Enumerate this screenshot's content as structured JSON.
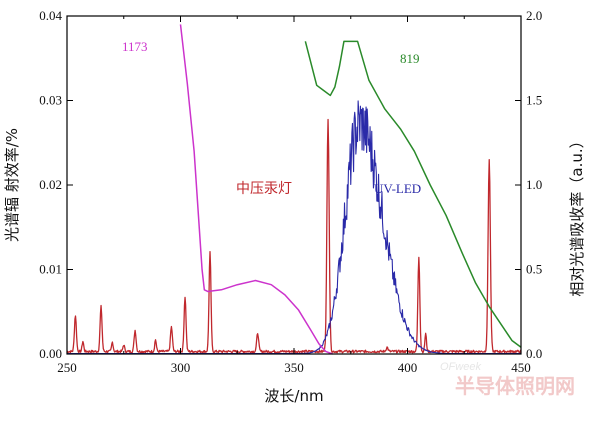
{
  "chart_data": {
    "type": "line",
    "xlabel": "波长/nm",
    "ylabel_left": "光谱辐 射效率/%",
    "ylabel_right": "相对光谱吸收率（a.u.）",
    "xlim": [
      250,
      450
    ],
    "ylim_left": [
      0,
      0.04
    ],
    "ylim_right": [
      0,
      2.0
    ],
    "x_ticks": [
      "250",
      "300",
      "350",
      "400",
      "450"
    ],
    "y_left_ticks": [
      "0.00",
      "0.01",
      "0.02",
      "0.03",
      "0.04"
    ],
    "y_right_ticks": [
      "0.0",
      "0.5",
      "1.0",
      "1.5",
      "2.0"
    ],
    "grid": false,
    "series": [
      {
        "name": "中压汞灯",
        "color": "#c0282d",
        "axis": "left",
        "baseline": 0.0003,
        "peaks": [
          {
            "x": 253.7,
            "y": 0.0043,
            "w": 0.6
          },
          {
            "x": 257,
            "y": 0.0012,
            "w": 0.5
          },
          {
            "x": 265,
            "y": 0.0053,
            "w": 0.6
          },
          {
            "x": 270,
            "y": 0.0011,
            "w": 0.5
          },
          {
            "x": 275,
            "y": 0.0008,
            "w": 0.5
          },
          {
            "x": 280,
            "y": 0.0025,
            "w": 0.6
          },
          {
            "x": 289,
            "y": 0.0014,
            "w": 0.5
          },
          {
            "x": 296,
            "y": 0.0029,
            "w": 0.6
          },
          {
            "x": 302,
            "y": 0.0065,
            "w": 0.6
          },
          {
            "x": 313,
            "y": 0.0117,
            "w": 0.6
          },
          {
            "x": 334,
            "y": 0.0022,
            "w": 0.6
          },
          {
            "x": 365,
            "y": 0.0274,
            "w": 0.7
          },
          {
            "x": 391,
            "y": 0.0005,
            "w": 0.6
          },
          {
            "x": 405,
            "y": 0.0112,
            "w": 0.6
          },
          {
            "x": 408,
            "y": 0.0021,
            "w": 0.5
          },
          {
            "x": 436,
            "y": 0.0227,
            "w": 0.7
          }
        ]
      },
      {
        "name": "UV-LED",
        "color": "#2a2aa8",
        "axis": "left",
        "center": 379,
        "peak": 0.0272,
        "sigma_left": 6.5,
        "sigma_right": 10.0,
        "range": [
          355,
          405
        ]
      },
      {
        "name": "1173",
        "color": "#cc33cc",
        "axis": "right",
        "points": [
          [
            300,
            1.95
          ],
          [
            303,
            1.6
          ],
          [
            306,
            1.2
          ],
          [
            308,
            0.8
          ],
          [
            309.5,
            0.5
          ],
          [
            310.5,
            0.38
          ],
          [
            312,
            0.37
          ],
          [
            318,
            0.38
          ],
          [
            325,
            0.41
          ],
          [
            333,
            0.435
          ],
          [
            340,
            0.41
          ],
          [
            346,
            0.35
          ],
          [
            352,
            0.26
          ],
          [
            357,
            0.15
          ],
          [
            361,
            0.06
          ],
          [
            364,
            0.015
          ],
          [
            367,
            0.0
          ]
        ]
      },
      {
        "name": "819",
        "color": "#2a8a2a",
        "axis": "right",
        "points": [
          [
            355,
            1.85
          ],
          [
            360,
            1.59
          ],
          [
            363,
            1.56
          ],
          [
            366,
            1.53
          ],
          [
            368,
            1.58
          ],
          [
            370,
            1.7
          ],
          [
            372,
            1.85
          ],
          [
            378,
            1.85
          ],
          [
            383,
            1.62
          ],
          [
            390,
            1.45
          ],
          [
            397,
            1.33
          ],
          [
            403,
            1.2
          ],
          [
            410,
            1.0
          ],
          [
            417,
            0.82
          ],
          [
            424,
            0.6
          ],
          [
            430,
            0.42
          ],
          [
            436,
            0.28
          ],
          [
            442,
            0.16
          ],
          [
            446,
            0.08
          ],
          [
            450,
            0.04
          ]
        ]
      }
    ],
    "annotations": [
      {
        "text": "1173",
        "color": "#cc33cc"
      },
      {
        "text": "819",
        "color": "#2a8a2a"
      },
      {
        "text": "中压汞灯",
        "color": "#c0282d"
      },
      {
        "text": "UV-LED",
        "color": "#2a2aa8"
      }
    ]
  },
  "watermark": {
    "text": "半导体照明网",
    "subtext": "OFweek"
  }
}
